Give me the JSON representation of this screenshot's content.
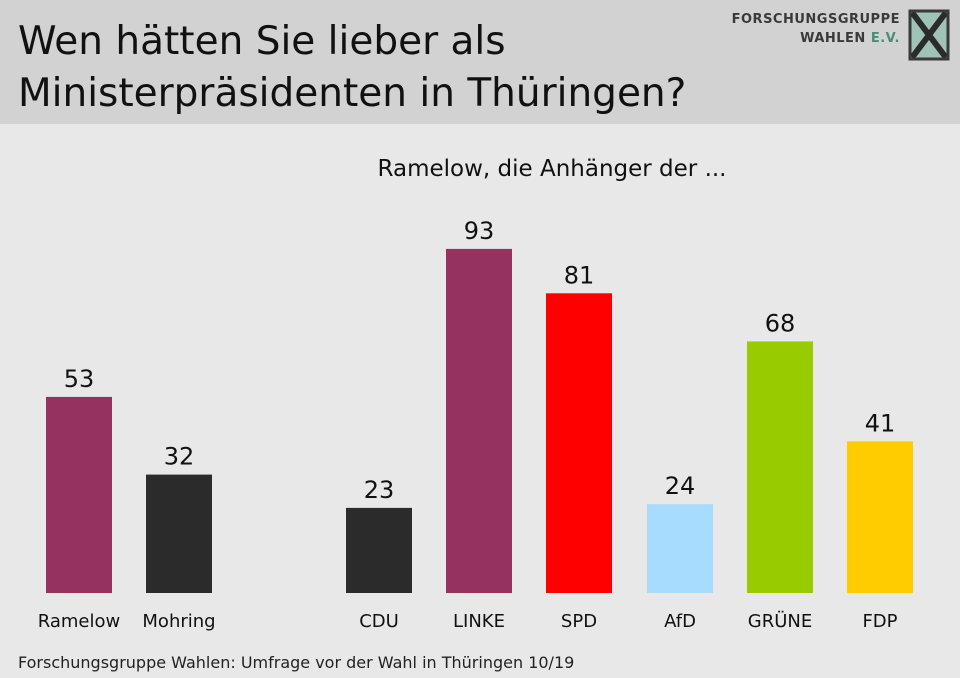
{
  "header": {
    "title_line1": "Wen hätten Sie lieber als",
    "title_line2": "Ministerpräsidenten in Thüringen?",
    "logo_line1": "FORSCHUNGSGRUPPE",
    "logo_line2_prefix": "WAHLEN ",
    "logo_line2_suffix": "E.V."
  },
  "chart_data": [
    {
      "type": "bar",
      "title": "",
      "categories": [
        "Ramelow",
        "Mohring"
      ],
      "values": [
        53,
        32
      ],
      "colors": [
        "#95325f",
        "#2b2b2b"
      ],
      "ylim": [
        0,
        100
      ]
    },
    {
      "type": "bar",
      "title": "Ramelow, die Anhänger der ...",
      "categories": [
        "CDU",
        "LINKE",
        "SPD",
        "AfD",
        "GRÜNE",
        "FDP"
      ],
      "values": [
        23,
        93,
        81,
        24,
        68,
        41
      ],
      "colors": [
        "#2b2b2b",
        "#95325f",
        "#ff0000",
        "#a8dcff",
        "#99cc00",
        "#ffcc00"
      ],
      "ylim": [
        0,
        100
      ]
    }
  ],
  "footer": {
    "source": "Forschungsgruppe Wahlen: Umfrage vor der Wahl in Thüringen 10/19"
  }
}
